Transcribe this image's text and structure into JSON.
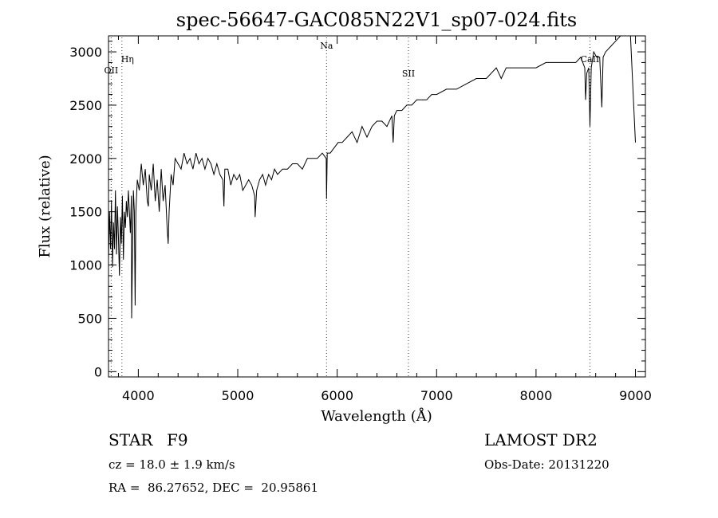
{
  "chart_data": {
    "type": "line",
    "title": "spec-56647-GAC085N22V1_sp07-024.fits",
    "xlabel": "Wavelength (Å)",
    "ylabel": "Flux (relative)",
    "xlim": [
      3700,
      9100
    ],
    "ylim": [
      -50,
      3150
    ],
    "xticks": [
      4000,
      5000,
      6000,
      7000,
      8000,
      9000
    ],
    "yticks": [
      0,
      500,
      1000,
      1500,
      2000,
      2500,
      3000
    ],
    "grid": false,
    "line_color": "#000000",
    "marker_color": "#c00000",
    "line_markers": [
      {
        "label": "OII",
        "x": 3727
      },
      {
        "label": "Hη",
        "x": 3835
      },
      {
        "label": "Na",
        "x": 5893
      },
      {
        "label": "SII",
        "x": 6717
      },
      {
        "label": "CaII",
        "x": 8542
      }
    ],
    "series": [
      {
        "x": [
          3700,
          3710,
          3720,
          3730,
          3740,
          3750,
          3760,
          3770,
          3780,
          3790,
          3800,
          3810,
          3820,
          3830,
          3840,
          3850,
          3860,
          3870,
          3880,
          3890,
          3900,
          3910,
          3920,
          3930,
          3933,
          3940,
          3950,
          3960,
          3968,
          3975,
          3990,
          4010,
          4030,
          4050,
          4070,
          4090,
          4101,
          4110,
          4130,
          4150,
          4170,
          4190,
          4210,
          4230,
          4250,
          4270,
          4290,
          4300,
          4310,
          4330,
          4350,
          4370,
          4400,
          4430,
          4460,
          4490,
          4520,
          4550,
          4580,
          4610,
          4640,
          4670,
          4700,
          4730,
          4760,
          4790,
          4820,
          4850,
          4861,
          4870,
          4900,
          4930,
          4960,
          4990,
          5020,
          5050,
          5080,
          5110,
          5140,
          5170,
          5175,
          5190,
          5220,
          5250,
          5280,
          5310,
          5340,
          5370,
          5400,
          5450,
          5500,
          5550,
          5600,
          5650,
          5700,
          5750,
          5800,
          5850,
          5890,
          5893,
          5900,
          5930,
          5970,
          6010,
          6050,
          6100,
          6150,
          6200,
          6250,
          6300,
          6350,
          6400,
          6450,
          6500,
          6550,
          6563,
          6575,
          6600,
          6650,
          6700,
          6750,
          6800,
          6850,
          6900,
          6950,
          7000,
          7100,
          7200,
          7300,
          7400,
          7500,
          7600,
          7650,
          7700,
          7800,
          7900,
          8000,
          8100,
          8200,
          8300,
          8400,
          8450,
          8490,
          8498,
          8510,
          8530,
          8542,
          8555,
          8580,
          8610,
          8640,
          8662,
          8675,
          8700,
          8750,
          8800,
          8850,
          8900,
          8950,
          9000
        ],
        "values": [
          1050,
          1500,
          1150,
          1600,
          980,
          1400,
          1150,
          1700,
          1100,
          1550,
          1250,
          900,
          1450,
          1200,
          1650,
          1050,
          1500,
          1350,
          1600,
          1450,
          1700,
          1500,
          1300,
          1650,
          500,
          1000,
          1700,
          1500,
          620,
          1500,
          1800,
          1700,
          1950,
          1750,
          1900,
          1600,
          1550,
          1850,
          1700,
          1950,
          1600,
          1800,
          1500,
          1900,
          1600,
          1750,
          1350,
          1200,
          1500,
          1850,
          1750,
          2000,
          1950,
          1900,
          2050,
          1950,
          2000,
          1900,
          2050,
          1950,
          2000,
          1900,
          2000,
          1950,
          1850,
          1950,
          1850,
          1800,
          1550,
          1900,
          1900,
          1750,
          1850,
          1800,
          1850,
          1700,
          1750,
          1800,
          1750,
          1650,
          1450,
          1700,
          1800,
          1850,
          1750,
          1850,
          1800,
          1900,
          1850,
          1900,
          1900,
          1950,
          1950,
          1900,
          2000,
          2000,
          2000,
          2050,
          2000,
          1620,
          2050,
          2050,
          2100,
          2150,
          2150,
          2200,
          2250,
          2150,
          2300,
          2200,
          2300,
          2350,
          2350,
          2300,
          2400,
          2150,
          2400,
          2450,
          2450,
          2500,
          2500,
          2550,
          2550,
          2550,
          2600,
          2600,
          2650,
          2650,
          2700,
          2750,
          2750,
          2850,
          2750,
          2850,
          2850,
          2850,
          2850,
          2900,
          2900,
          2900,
          2900,
          2950,
          2850,
          2550,
          2800,
          2850,
          2300,
          2850,
          3000,
          2950,
          2950,
          2480,
          2950,
          3000,
          3050,
          3100,
          3150,
          3150,
          3150,
          2150
        ]
      }
    ]
  },
  "info": {
    "object_class": "STAR",
    "subclass": "F9",
    "survey": "LAMOST DR2",
    "cz": "cz = 18.0 ± 1.9 km/s",
    "obs_date": "Obs-Date: 20131220",
    "coords": "RA =  86.27652, DEC =  20.95861"
  }
}
